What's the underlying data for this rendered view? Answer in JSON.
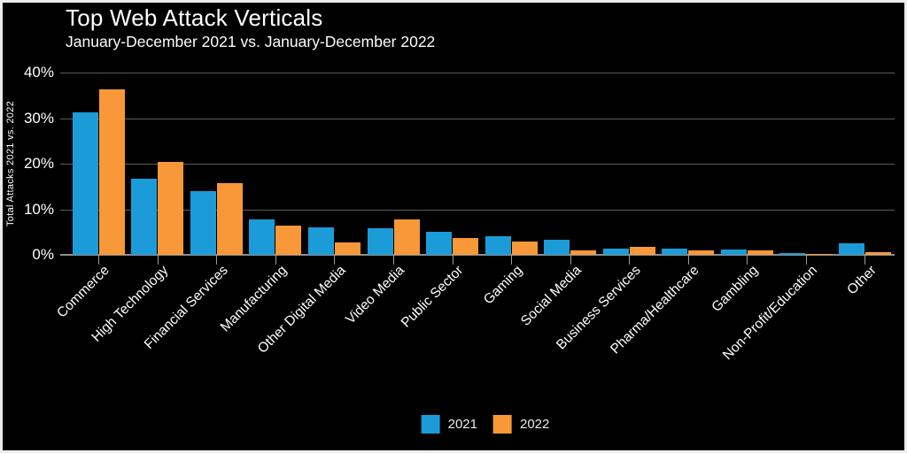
{
  "header": {
    "title": "Top Web Attack Verticals",
    "subtitle": "January-December 2021 vs. January-December 2022"
  },
  "colors": {
    "background": "#000000",
    "text": "#FFFFFF",
    "gridline": "#5C5C5C",
    "axis_line": "#8F8F8F",
    "series_2021": "#1B9CD9",
    "series_2022": "#F89838",
    "frame_border": "#ECECEC"
  },
  "chart_data": {
    "type": "bar",
    "title": "Top Web Attack Verticals",
    "subtitle": "January-December 2021 vs. January-December 2022",
    "xlabel": "",
    "ylabel": "Total Attacks 2021 vs. 2022",
    "ylim": [
      0,
      40
    ],
    "yticks": [
      0,
      10,
      20,
      30,
      40
    ],
    "ytick_labels": [
      "0%",
      "10%",
      "20%",
      "30%",
      "40%"
    ],
    "grid": true,
    "legend_position": "bottom",
    "categories": [
      "Commerce",
      "High Technology",
      "Financial Services",
      "Manufacturing",
      "Other Digital Media",
      "Video Media",
      "Public Sector",
      "Gaming",
      "Social Media",
      "Business Services",
      "Pharma/Healthcare",
      "Gambling",
      "Non-Profit/Education",
      "Other"
    ],
    "series": [
      {
        "name": "2021",
        "color": "#1B9CD9",
        "values": [
          31.2,
          16.7,
          13.9,
          7.7,
          6.1,
          5.9,
          5.0,
          4.0,
          3.3,
          1.4,
          1.3,
          1.2,
          0.3,
          2.5
        ]
      },
      {
        "name": "2022",
        "color": "#F89838",
        "values": [
          36.3,
          20.3,
          15.7,
          6.4,
          2.8,
          7.7,
          3.7,
          3.0,
          1.0,
          1.7,
          0.9,
          0.9,
          0.2,
          0.5
        ]
      }
    ]
  }
}
